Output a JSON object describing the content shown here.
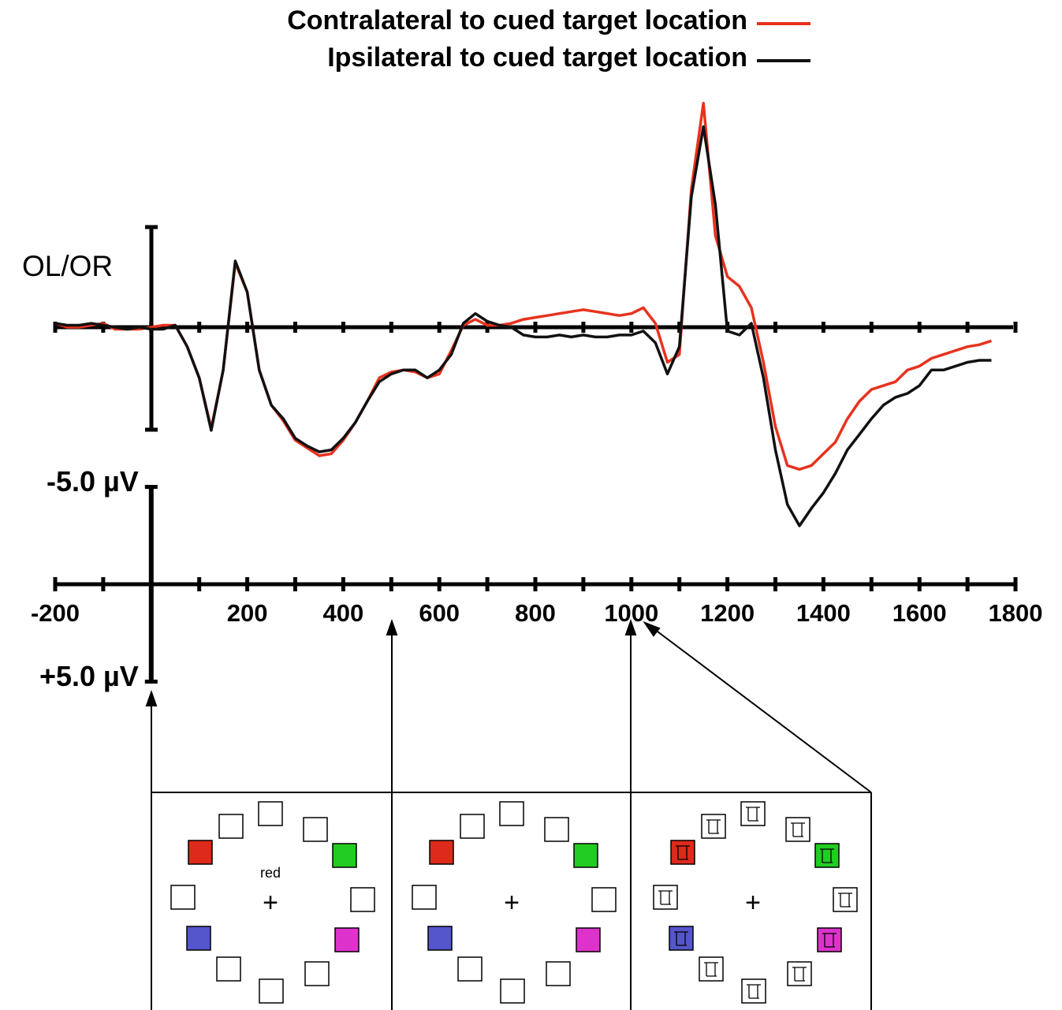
{
  "chart_data": {
    "type": "line",
    "annotation": "OL/OR",
    "x": [
      -200,
      -175,
      -150,
      -125,
      -100,
      -75,
      -50,
      -25,
      0,
      25,
      50,
      75,
      100,
      125,
      150,
      175,
      200,
      225,
      250,
      275,
      300,
      325,
      350,
      375,
      400,
      425,
      450,
      475,
      500,
      525,
      550,
      575,
      600,
      625,
      650,
      675,
      700,
      725,
      750,
      775,
      800,
      825,
      850,
      875,
      900,
      925,
      950,
      975,
      1000,
      1025,
      1050,
      1075,
      1100,
      1125,
      1150,
      1175,
      1200,
      1225,
      1250,
      1275,
      1300,
      1325,
      1350,
      1375,
      1400,
      1425,
      1450,
      1475,
      1500,
      1525,
      1550,
      1575,
      1600,
      1625,
      1650,
      1675,
      1700,
      1725,
      1750
    ],
    "series": [
      {
        "name": "Contralateral to cued target location",
        "color": "#e8321e",
        "values": [
          -0.2,
          0,
          0,
          -0.1,
          -0.2,
          0.1,
          0.1,
          0.1,
          0,
          -0.1,
          -0.1,
          1.0,
          2.6,
          5.2,
          2.2,
          -3.3,
          -1.8,
          2.2,
          4.0,
          4.8,
          5.8,
          6.2,
          6.6,
          6.5,
          5.8,
          4.9,
          3.8,
          2.6,
          2.3,
          2.2,
          2.3,
          2.6,
          2.4,
          1.2,
          -0.1,
          -0.4,
          -0.1,
          -0.1,
          -0.2,
          -0.4,
          -0.5,
          -0.6,
          -0.7,
          -0.8,
          -0.9,
          -0.8,
          -0.7,
          -0.6,
          -0.7,
          -1.0,
          -0.2,
          1.8,
          1.4,
          -7.1,
          -11.5,
          -4.7,
          -2.6,
          -2.1,
          -1.0,
          1.8,
          5.1,
          7.1,
          7.3,
          7.1,
          6.5,
          5.9,
          4.7,
          3.8,
          3.2,
          3.0,
          2.8,
          2.2,
          2.0,
          1.6,
          1.4,
          1.2,
          1.0,
          0.9,
          0.7
        ]
      },
      {
        "name": "Ipsilateral to cued target location",
        "color": "#111111",
        "values": [
          -0.2,
          -0.1,
          -0.1,
          -0.2,
          -0.1,
          0,
          0.1,
          0,
          0.1,
          0.1,
          -0.1,
          1.0,
          2.6,
          5.3,
          2.2,
          -3.4,
          -1.8,
          2.2,
          4.0,
          4.7,
          5.7,
          6.1,
          6.4,
          6.3,
          5.7,
          4.9,
          3.8,
          2.8,
          2.4,
          2.2,
          2.2,
          2.6,
          2.2,
          1.4,
          -0.2,
          -0.7,
          -0.3,
          -0.1,
          0,
          0.4,
          0.5,
          0.5,
          0.4,
          0.5,
          0.4,
          0.5,
          0.5,
          0.4,
          0.4,
          0.2,
          0.8,
          2.4,
          1.0,
          -6.7,
          -10.3,
          -6.3,
          0.2,
          0.4,
          -0.2,
          2.6,
          6.3,
          9.1,
          10.2,
          9.3,
          8.5,
          7.5,
          6.3,
          5.5,
          4.7,
          4.0,
          3.6,
          3.4,
          3.0,
          2.2,
          2.2,
          2.0,
          1.8,
          1.7,
          1.7
        ]
      }
    ],
    "xlim": [
      -200,
      1800
    ],
    "xticks": [
      -200,
      200,
      400,
      600,
      800,
      1000,
      1200,
      1400,
      1600,
      1800
    ],
    "xminor_ticks": [
      -100,
      0,
      100,
      300,
      500,
      700,
      900,
      1100,
      1300,
      1500,
      1700
    ],
    "ylim": [
      -12,
      12
    ],
    "y_inverted": true,
    "scale_bar": {
      "ticks": [
        {
          "value": -5,
          "label": "-5.0 µV"
        },
        {
          "value": 5,
          "label": "+5.0 µV"
        }
      ]
    },
    "displays": {
      "cue_word": "red",
      "fixation": "+"
    }
  }
}
